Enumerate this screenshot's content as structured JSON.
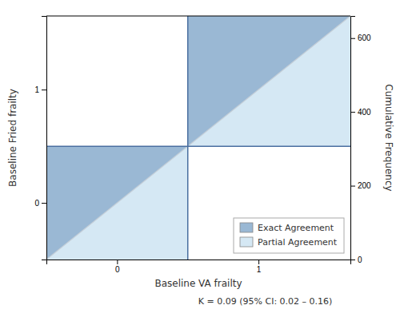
{
  "chart_data": {
    "type": "agreement",
    "xlabel": "Baseline VA frailty",
    "ylabel": "Baseline Fried frailty",
    "y2label": "Cumulative Frequency",
    "annotation": "K = 0.09 (95% CI: 0.02 – 0.16)",
    "xlim": [
      -0.5,
      1.65
    ],
    "ylim": [
      -0.5,
      1.65
    ],
    "xticks": [
      0,
      1
    ],
    "yticks": [
      0,
      1
    ],
    "y2lim": [
      0,
      660
    ],
    "y2ticks": [
      0,
      200,
      400,
      600
    ],
    "thresholds": {
      "x": 0.5,
      "y": 0.5,
      "color": "#4a6fa0"
    },
    "diagonal": {
      "color": "#c5cfd8"
    },
    "series": [
      {
        "name": "Exact Agreement",
        "color": "#9ab8d4"
      },
      {
        "name": "Partial Agreement",
        "color": "#d5e8f4"
      }
    ],
    "legend": "lower right"
  }
}
